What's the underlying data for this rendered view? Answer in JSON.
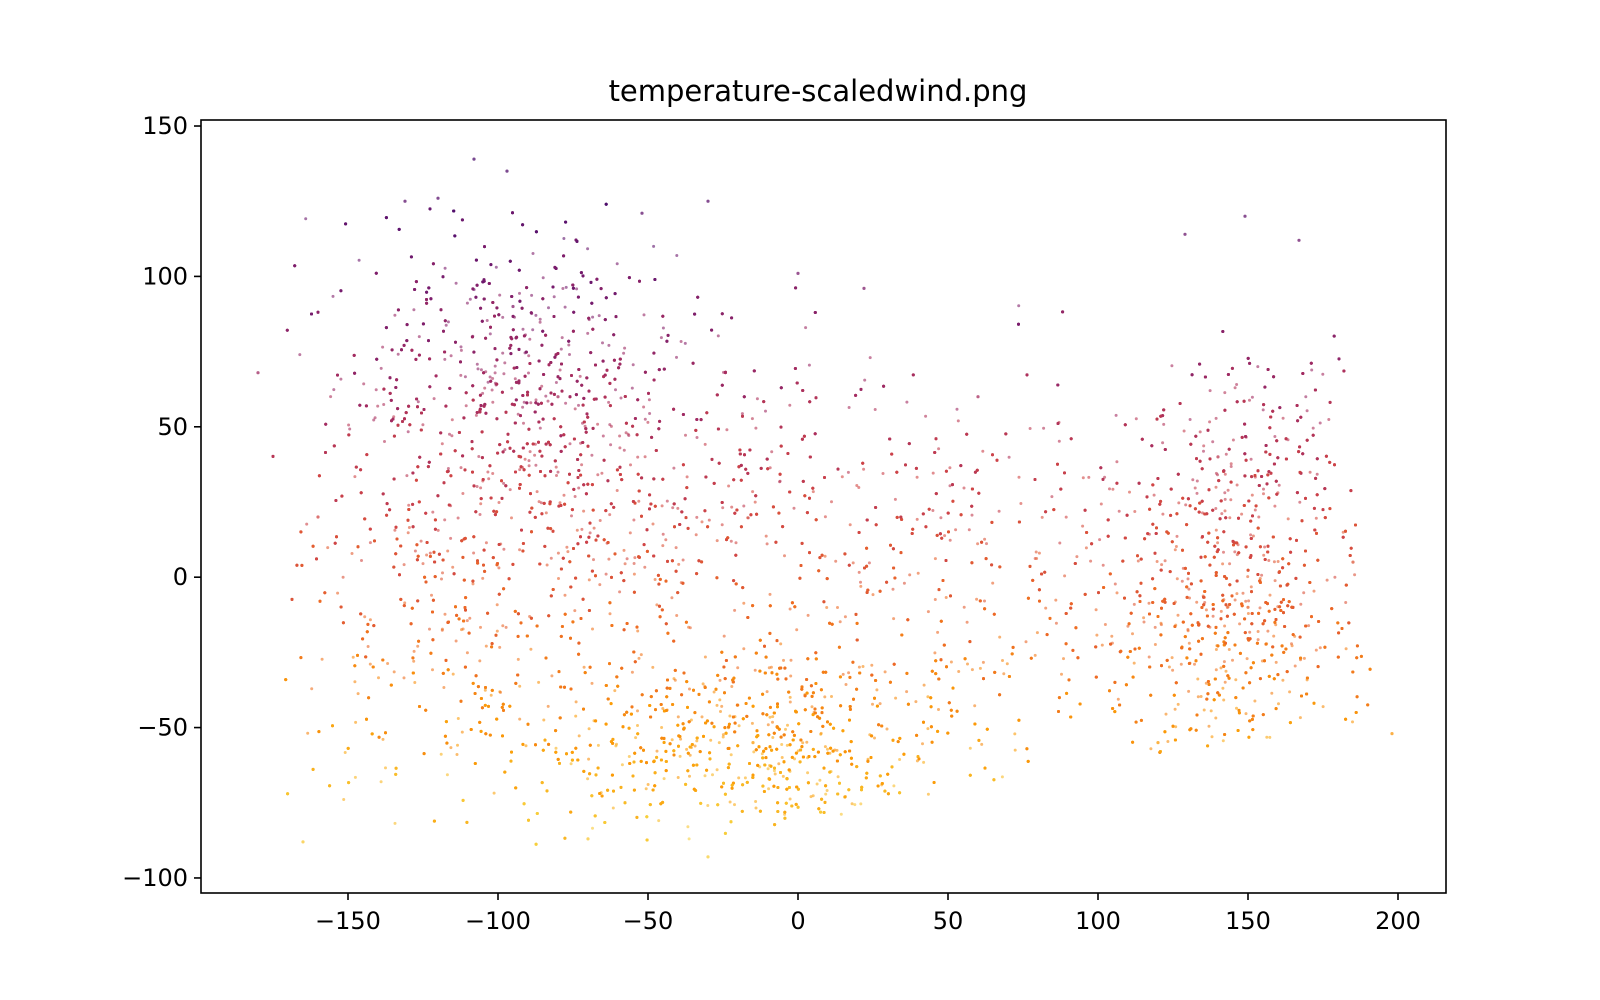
{
  "chart_data": {
    "type": "scatter",
    "title": "temperature-scaledwind.png",
    "xlabel": "",
    "ylabel": "",
    "xlim": [
      -199,
      216
    ],
    "ylim": [
      -105,
      152
    ],
    "x_ticks": [
      -150,
      -100,
      -50,
      0,
      50,
      100,
      150,
      200
    ],
    "x_tick_labels": [
      "−150",
      "−100",
      "−50",
      "0",
      "50",
      "100",
      "150",
      "200"
    ],
    "y_ticks": [
      -100,
      -50,
      0,
      50,
      100,
      150
    ],
    "y_tick_labels": [
      "−100",
      "−50",
      "0",
      "50",
      "100",
      "150"
    ],
    "grid": false,
    "legend": "none",
    "colormap": "inferno",
    "color_encodes": "y (higher values dark purple, lower values yellow)",
    "colormap_stops": [
      "#4a0c6b",
      "#781c6d",
      "#a52c60",
      "#cf4446",
      "#ed6925",
      "#fb9b06",
      "#f7d13d"
    ],
    "marker": {
      "alpha": 0.6,
      "color_range_y": [
        -95,
        140
      ]
    },
    "clusters": [
      {
        "x_center": -95,
        "y_center": 65,
        "x_spread": 30,
        "y_spread": 25,
        "weight": 0.16
      },
      {
        "x_center": -60,
        "y_center": 20,
        "x_spread": 45,
        "y_spread": 28,
        "weight": 0.16
      },
      {
        "x_center": -15,
        "y_center": -55,
        "x_spread": 35,
        "y_spread": 15,
        "weight": 0.2
      },
      {
        "x_center": -120,
        "y_center": -20,
        "x_spread": 35,
        "y_spread": 35,
        "weight": 0.12
      },
      {
        "x_center": 150,
        "y_center": 25,
        "x_spread": 20,
        "y_spread": 25,
        "weight": 0.12
      },
      {
        "x_center": 145,
        "y_center": -25,
        "x_spread": 22,
        "y_spread": 20,
        "weight": 0.12
      },
      {
        "x_center": 60,
        "y_center": 0,
        "x_spread": 45,
        "y_spread": 35,
        "weight": 0.12
      }
    ],
    "sample_points": [
      [
        -180,
        68
      ],
      [
        -108,
        139
      ],
      [
        -97,
        135
      ],
      [
        -131,
        125
      ],
      [
        -120,
        126
      ],
      [
        -30,
        125
      ],
      [
        -52,
        121
      ],
      [
        0,
        101
      ],
      [
        22,
        96
      ],
      [
        149,
        120
      ],
      [
        167,
        112
      ],
      [
        129,
        114
      ],
      [
        185,
        5
      ],
      [
        198,
        -52
      ],
      [
        -165,
        -88
      ],
      [
        -30,
        -93
      ],
      [
        -70,
        -87
      ],
      [
        120,
        -55
      ],
      [
        -15,
        -55
      ],
      [
        -95,
        90
      ],
      [
        -80,
        60
      ],
      [
        140,
        40
      ],
      [
        150,
        -10
      ],
      [
        -160,
        20
      ],
      [
        60,
        60
      ]
    ]
  }
}
